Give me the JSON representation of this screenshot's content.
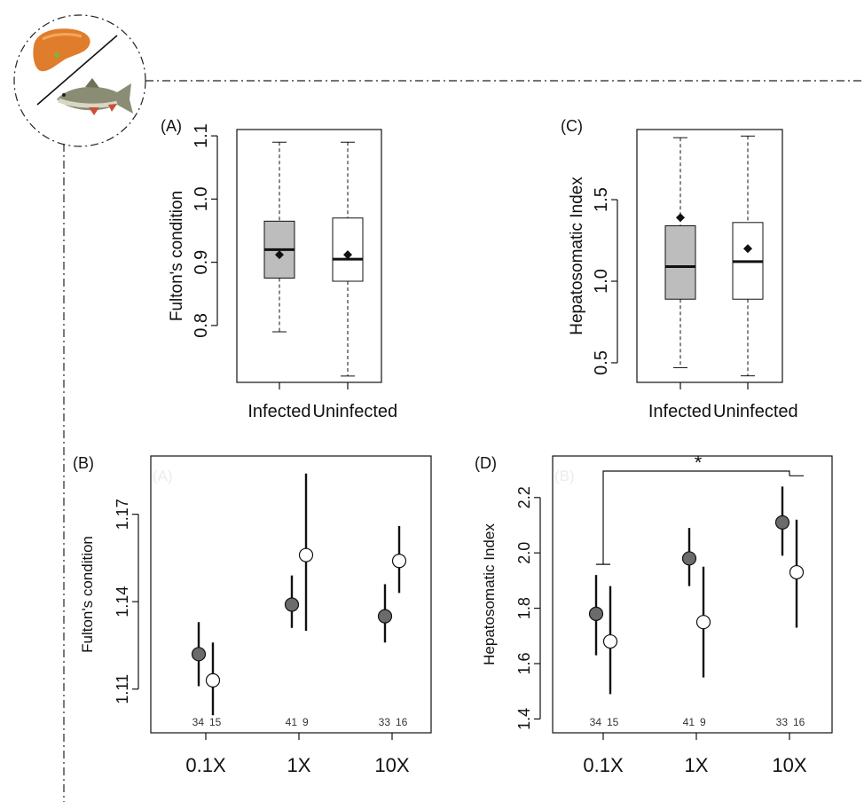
{
  "colors": {
    "infected": "#6b6b6b",
    "uninfected": "#ffffff",
    "box_infected": "#bdbdbd",
    "box_uninfected": "#ffffff"
  },
  "icons": {
    "liver": "liver-icon",
    "fish": "fish-icon"
  },
  "chart_data": [
    {
      "panel": "(A)",
      "type": "box",
      "ylabel": "Fulton's condition",
      "categories": [
        "Infected",
        "Uninfected"
      ],
      "ylim": [
        0.71,
        1.11
      ],
      "yticks": [
        "0.8",
        "0.9",
        "1.0",
        "1.1"
      ],
      "boxes": [
        {
          "name": "Infected",
          "min": 0.79,
          "q1": 0.875,
          "median": 0.92,
          "q3": 0.965,
          "max": 1.09,
          "mean": 0.912
        },
        {
          "name": "Uninfected",
          "min": 0.72,
          "q1": 0.87,
          "median": 0.905,
          "q3": 0.97,
          "max": 1.09,
          "mean": 0.912
        }
      ]
    },
    {
      "panel": "(C)",
      "type": "box",
      "ylabel": "Hepatosomatic Index",
      "categories": [
        "Infected",
        "Uninfected"
      ],
      "ylim": [
        0.38,
        1.93
      ],
      "yticks": [
        "0.5",
        "1.0",
        "1.5"
      ],
      "boxes": [
        {
          "name": "Infected",
          "min": 0.47,
          "q1": 0.89,
          "median": 1.09,
          "q3": 1.34,
          "max": 1.88,
          "mean": 1.39
        },
        {
          "name": "Uninfected",
          "min": 0.42,
          "q1": 0.89,
          "median": 1.12,
          "q3": 1.36,
          "max": 1.89,
          "mean": 1.2
        }
      ]
    },
    {
      "panel": "(B)",
      "ghost_label": "(A)",
      "type": "scatter",
      "ylabel": "Fulton's condition",
      "categories": [
        "0.1X",
        "1X",
        "10X"
      ],
      "ylim": [
        1.095,
        1.19
      ],
      "yticks": [
        "1.11",
        "1.14",
        "1.17"
      ],
      "series": [
        {
          "name": "",
          "fill": "infected",
          "values": [
            1.122,
            1.139,
            1.135
          ],
          "lower": [
            1.111,
            1.131,
            1.126
          ],
          "upper": [
            1.133,
            1.149,
            1.146
          ]
        },
        {
          "name": "",
          "fill": "uninfected",
          "values": [
            1.113,
            1.156,
            1.154
          ],
          "lower": [
            1.101,
            1.13,
            1.143
          ],
          "upper": [
            1.126,
            1.184,
            1.166
          ]
        }
      ],
      "counts": [
        [
          "34",
          "15"
        ],
        [
          "41",
          "9"
        ],
        [
          "33",
          "16"
        ]
      ]
    },
    {
      "panel": "(D)",
      "ghost_label": "(B)",
      "type": "scatter",
      "ylabel": "Hepatosomatic Index",
      "categories": [
        "0.1X",
        "1X",
        "10X"
      ],
      "ylim": [
        1.35,
        2.35
      ],
      "yticks": [
        "1.4",
        "1.6",
        "1.8",
        "2.0",
        "2.2"
      ],
      "series": [
        {
          "name": "",
          "fill": "infected",
          "values": [
            1.78,
            1.98,
            2.11
          ],
          "lower": [
            1.63,
            1.88,
            1.99
          ],
          "upper": [
            1.92,
            2.09,
            2.24
          ]
        },
        {
          "name": "",
          "fill": "uninfected",
          "values": [
            1.68,
            1.75,
            1.93
          ],
          "lower": [
            1.49,
            1.55,
            1.73
          ],
          "upper": [
            1.88,
            1.95,
            2.12
          ]
        }
      ],
      "counts": [
        [
          "34",
          "15"
        ],
        [
          "41",
          "9"
        ],
        [
          "33",
          "16"
        ]
      ],
      "significance": {
        "label": "*",
        "from": "0.1X",
        "to": "10X"
      }
    }
  ]
}
